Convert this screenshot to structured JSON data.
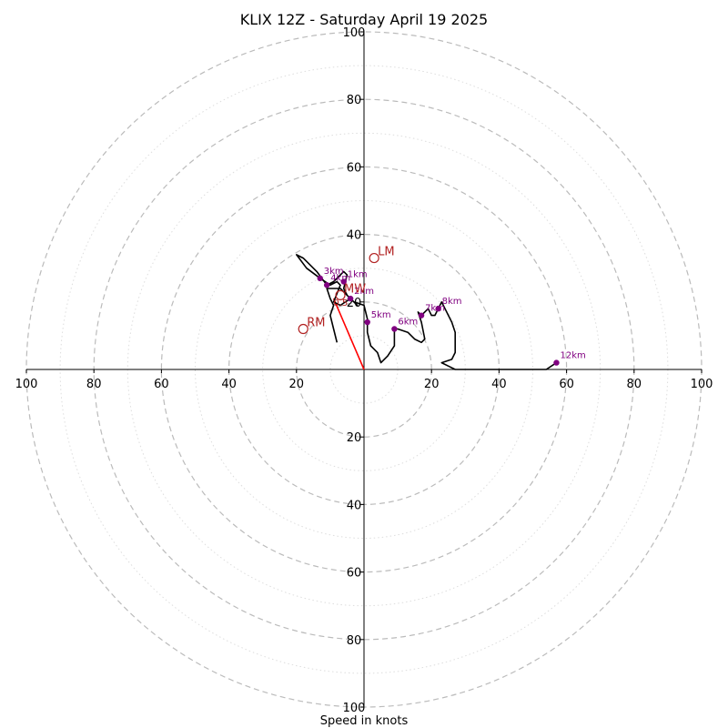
{
  "chart_data": {
    "type": "hodograph",
    "title": "KLIX 12Z - Saturday April 19 2025",
    "xlabel": "Speed in knots",
    "range": [
      -100,
      100
    ],
    "rings": [
      20,
      40,
      60,
      80,
      100
    ],
    "minor_rings": [
      10,
      30,
      50,
      70,
      90
    ],
    "x_ticks": [
      "100",
      "80",
      "60",
      "40",
      "20",
      "20",
      "40",
      "60",
      "80",
      "100"
    ],
    "y_ticks": [
      "100",
      "80",
      "60",
      "40",
      "20",
      "20",
      "40",
      "60",
      "80",
      "100"
    ],
    "x_tick_values": [
      -100,
      -80,
      -60,
      -40,
      -20,
      20,
      40,
      60,
      80,
      100
    ],
    "y_tick_values": [
      100,
      80,
      60,
      40,
      20,
      -20,
      -40,
      -60,
      -80,
      -100
    ],
    "hodograph_line": {
      "color": "#000000",
      "points": [
        [
          -8,
          8
        ],
        [
          -9,
          12
        ],
        [
          -10,
          16
        ],
        [
          -9,
          19
        ],
        [
          -10,
          21
        ],
        [
          -11,
          24
        ],
        [
          -7,
          24
        ],
        [
          -5,
          22
        ],
        [
          -3,
          20
        ],
        [
          -2,
          19
        ],
        [
          -4,
          21
        ],
        [
          -5,
          22
        ],
        [
          -6,
          24
        ],
        [
          -5,
          28
        ],
        [
          -6,
          29
        ],
        [
          -8,
          27
        ],
        [
          -9,
          26
        ],
        [
          -11,
          25
        ],
        [
          -14,
          29
        ],
        [
          -18,
          33
        ],
        [
          -20,
          34
        ],
        [
          -17,
          30
        ],
        [
          -13,
          27
        ],
        [
          -10,
          25
        ],
        [
          -8,
          26
        ],
        [
          -7,
          25
        ],
        [
          -9,
          20
        ],
        [
          -7,
          19
        ],
        [
          -4,
          21
        ],
        [
          -3,
          20
        ],
        [
          0,
          19
        ],
        [
          1,
          15
        ],
        [
          1,
          11
        ],
        [
          2,
          7
        ],
        [
          4,
          5
        ],
        [
          5,
          2
        ],
        [
          7,
          4
        ],
        [
          9,
          7
        ],
        [
          9,
          12
        ],
        [
          10,
          12
        ],
        [
          13,
          11
        ],
        [
          15,
          9
        ],
        [
          17,
          8
        ],
        [
          18,
          9
        ],
        [
          17,
          14
        ],
        [
          16,
          17
        ],
        [
          17,
          16
        ],
        [
          19,
          18
        ],
        [
          20,
          16
        ],
        [
          21,
          16
        ],
        [
          22,
          18
        ],
        [
          23,
          20
        ],
        [
          24,
          18
        ],
        [
          26,
          14
        ],
        [
          27,
          11
        ],
        [
          27,
          5
        ],
        [
          26,
          3
        ],
        [
          23,
          2
        ],
        [
          25,
          1
        ],
        [
          27,
          0
        ],
        [
          40,
          0
        ],
        [
          54,
          0
        ],
        [
          57,
          2
        ]
      ]
    },
    "height_markers": [
      {
        "label": "1km",
        "u": -6,
        "v": 26
      },
      {
        "label": "2km",
        "u": -4,
        "v": 21
      },
      {
        "label": "3km",
        "u": -13,
        "v": 27
      },
      {
        "label": "4km",
        "u": -11,
        "v": 25
      },
      {
        "label": "5km",
        "u": 1,
        "v": 14
      },
      {
        "label": "6km",
        "u": 9,
        "v": 12
      },
      {
        "label": "7km",
        "u": 17,
        "v": 16
      },
      {
        "label": "8km",
        "u": 22,
        "v": 18
      },
      {
        "label": "12km",
        "u": 57,
        "v": 2
      }
    ],
    "small_labels": [
      {
        "label": "0.5",
        "u": -8,
        "v": 20
      }
    ],
    "motion_markers": [
      {
        "label": "LM",
        "u": 3,
        "v": 33
      },
      {
        "label": "MW",
        "u": -7,
        "v": 22
      },
      {
        "label": "RM",
        "u": -18,
        "v": 12
      }
    ],
    "vector": {
      "color": "#ff0000",
      "from": [
        0,
        0
      ],
      "to": [
        -9,
        21
      ]
    },
    "colors": {
      "line": "#000000",
      "height_marker": "#800080",
      "motion": "#b22222",
      "vector": "#ff0000",
      "ring": "#bbbbbb",
      "minor_ring": "#dddddd"
    }
  }
}
